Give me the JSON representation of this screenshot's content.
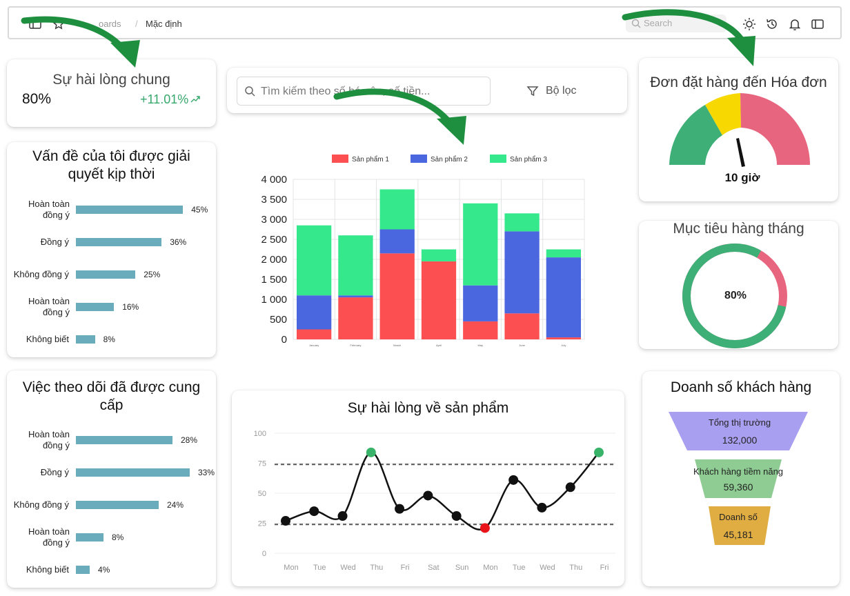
{
  "topbar": {
    "crumb_dashboards": "oards",
    "crumb_sep": "/",
    "crumb_current": "Mặc định",
    "search_placeholder": "Search"
  },
  "kpi": {
    "title": "Sự hài lòng chung",
    "value": "80%",
    "delta": "+11.01%"
  },
  "survey1": {
    "title": "Vấn đề của tôi được giải quyết kịp thời",
    "rows": [
      {
        "label": "Hoàn toàn đồng ý",
        "pct": "45%",
        "value": 45
      },
      {
        "label": "Đồng ý",
        "pct": "36%",
        "value": 36
      },
      {
        "label": "Không đồng ý",
        "pct": "25%",
        "value": 25
      },
      {
        "label": "Hoàn toàn đồng ý",
        "pct": "16%",
        "value": 16
      },
      {
        "label": "Không biết",
        "pct": "8%",
        "value": 8
      }
    ]
  },
  "survey2": {
    "title": "Việc theo dõi đã được cung cấp",
    "rows": [
      {
        "label": "Hoàn toàn đồng ý",
        "pct": "28%",
        "value": 28
      },
      {
        "label": "Đồng ý",
        "pct": "33%",
        "value": 33
      },
      {
        "label": "Không đồng ý",
        "pct": "24%",
        "value": 24
      },
      {
        "label": "Hoàn toàn đồng ý",
        "pct": "8%",
        "value": 8
      },
      {
        "label": "Không biết",
        "pct": "4%",
        "value": 4
      }
    ]
  },
  "filterbar": {
    "search_placeholder": "Tìm kiếm theo số há...ên, số tiền...",
    "filter_label": "Bộ lọc"
  },
  "gauge": {
    "title": "Đơn đặt hàng đến Hóa đơn",
    "label": "10 giờ",
    "colors": {
      "green": "#3daf77",
      "yellow": "#f7d800",
      "red": "#e8657f"
    }
  },
  "donut": {
    "title": "Mục tiêu hàng tháng",
    "label": "80%",
    "value": 80,
    "colors": {
      "progress": "#3daf77",
      "rest": "#e8657f"
    }
  },
  "funnel": {
    "title": "Doanh số khách hàng",
    "stages": [
      {
        "label": "Tổng thị trường",
        "value": "132,000",
        "color": "#a99ff0"
      },
      {
        "label": "Khách hàng tiềm năng",
        "value": "59,360",
        "color": "#8fcc93"
      },
      {
        "label": "Doanh số",
        "value": "45,181",
        "color": "#e0ad42"
      }
    ]
  },
  "chart_data": [
    {
      "type": "bar",
      "stacked": true,
      "categories": [
        "January",
        "February",
        "March",
        "April",
        "May",
        "June",
        "July"
      ],
      "series": [
        {
          "name": "Sản phẩm 1",
          "color": "#fb4f52",
          "values": [
            250,
            1050,
            2150,
            1950,
            450,
            650,
            50
          ]
        },
        {
          "name": "Sản phẩm 2",
          "color": "#4a67e0",
          "values": [
            850,
            50,
            600,
            0,
            900,
            2050,
            2000
          ]
        },
        {
          "name": "Sản phẩm 3",
          "color": "#35e88c",
          "values": [
            1750,
            1500,
            1000,
            300,
            2050,
            450,
            200
          ]
        }
      ],
      "ylim": [
        0,
        4000
      ],
      "yticks": [
        "0",
        "500",
        "1 000",
        "1 500",
        "2 000",
        "2 500",
        "3 000",
        "3 500",
        "4 000"
      ],
      "legend": "top"
    },
    {
      "type": "line",
      "title": "Sự hài lòng về sản phẩm",
      "x": [
        "Mon",
        "Tue",
        "Wed",
        "Thu",
        "Fri",
        "Sat",
        "Sun",
        "Mon",
        "Tue",
        "Wed",
        "Thu",
        "Fri"
      ],
      "values": [
        27,
        35,
        31,
        84,
        37,
        48,
        31,
        21,
        61,
        38,
        55,
        84
      ],
      "highlight": {
        "max": "#3ab36a",
        "min": "#e8141a"
      },
      "thresholds": [
        74,
        24
      ],
      "ylim": [
        0,
        100
      ],
      "yticks": [
        "0",
        "25",
        "50",
        "75",
        "100"
      ]
    }
  ]
}
